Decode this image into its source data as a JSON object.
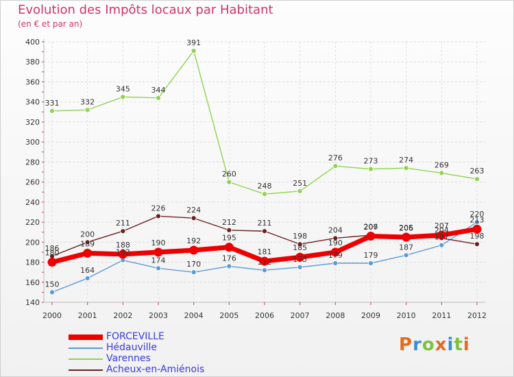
{
  "title": "Evolution des Impôts locaux par Habitant",
  "subtitle": "(en € et par an)",
  "logo": {
    "text": "Proxiti",
    "letter_colors": [
      "#e56b1f",
      "#3a8fd6",
      "#7cc242",
      "#e56b1f",
      "#3a8fd6",
      "#7cc242",
      "#e56b1f"
    ]
  },
  "chart_data": {
    "type": "line",
    "x": [
      "2000",
      "2001",
      "2002",
      "2003",
      "2004",
      "2005",
      "2006",
      "2007",
      "2008",
      "2009",
      "2010",
      "2011",
      "2012"
    ],
    "ylim": [
      140,
      400
    ],
    "yticks": [
      140,
      160,
      180,
      200,
      220,
      240,
      260,
      280,
      300,
      320,
      340,
      360,
      380,
      400
    ],
    "grid": true,
    "legend": "bottom-left",
    "series": [
      {
        "name": "FORCEVILLE",
        "color": "#ee0000",
        "values": [
          180,
          189,
          188,
          190,
          192,
          195,
          181,
          185,
          190,
          206,
          205,
          207,
          213
        ]
      },
      {
        "name": "Hédauville",
        "color": "#5b9bd5",
        "values": [
          150,
          164,
          182,
          174,
          170,
          176,
          172,
          175,
          179,
          179,
          187,
          197,
          220
        ]
      },
      {
        "name": "Varennes",
        "color": "#8fd34f",
        "values": [
          331,
          332,
          345,
          344,
          391,
          260,
          248,
          251,
          276,
          273,
          274,
          269,
          263
        ]
      },
      {
        "name": "Acheux-en-Amiénois",
        "color": "#6b1f1f",
        "values": [
          186,
          200,
          211,
          226,
          224,
          212,
          211,
          198,
          204,
          207,
          206,
          204,
          198
        ]
      }
    ]
  }
}
